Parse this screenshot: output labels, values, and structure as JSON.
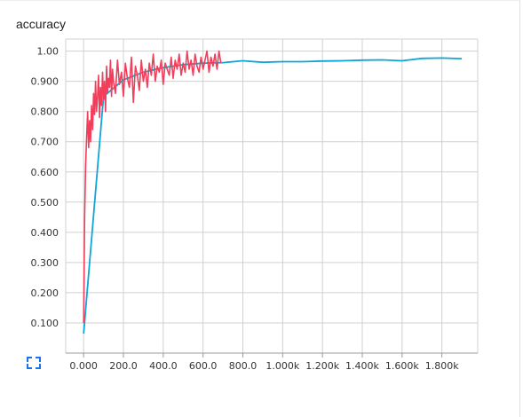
{
  "card": {
    "title": "accuracy"
  },
  "expand_icon": "expand-icon",
  "colors": {
    "train": "#f23e5b",
    "eval": "#0ea5d9",
    "grid": "#d0d0d0",
    "axis": "#9a9a9a",
    "expand": "#1a73e8"
  },
  "chart_data": {
    "type": "line",
    "title": "accuracy",
    "xlabel": "",
    "ylabel": "",
    "xlim": [
      -90,
      1980
    ],
    "ylim": [
      0.0,
      1.04
    ],
    "grid": true,
    "legend": "none",
    "x_ticks": [
      {
        "value": 0,
        "label": "0.000"
      },
      {
        "value": 200,
        "label": "200.0"
      },
      {
        "value": 400,
        "label": "400.0"
      },
      {
        "value": 600,
        "label": "600.0"
      },
      {
        "value": 800,
        "label": "800.0"
      },
      {
        "value": 1000,
        "label": "1.000k"
      },
      {
        "value": 1200,
        "label": "1.200k"
      },
      {
        "value": 1400,
        "label": "1.400k"
      },
      {
        "value": 1600,
        "label": "1.600k"
      },
      {
        "value": 1800,
        "label": "1.800k"
      }
    ],
    "y_ticks": [
      {
        "value": 0.1,
        "label": "0.100"
      },
      {
        "value": 0.2,
        "label": "0.200"
      },
      {
        "value": 0.3,
        "label": "0.300"
      },
      {
        "value": 0.4,
        "label": "0.400"
      },
      {
        "value": 0.5,
        "label": "0.500"
      },
      {
        "value": 0.6,
        "label": "0.600"
      },
      {
        "value": 0.7,
        "label": "0.700"
      },
      {
        "value": 0.8,
        "label": "0.800"
      },
      {
        "value": 0.9,
        "label": "0.900"
      },
      {
        "value": 1.0,
        "label": "1.00"
      }
    ],
    "series": [
      {
        "key": "eval",
        "x": [
          0,
          100,
          200,
          300,
          400,
          500,
          600,
          700,
          800,
          900,
          1000,
          1100,
          1200,
          1300,
          1400,
          1500,
          1600,
          1700,
          1800,
          1900
        ],
        "y": [
          0.065,
          0.85,
          0.905,
          0.93,
          0.945,
          0.955,
          0.96,
          0.962,
          0.968,
          0.963,
          0.965,
          0.965,
          0.967,
          0.968,
          0.97,
          0.971,
          0.968,
          0.976,
          0.977,
          0.975
        ]
      },
      {
        "key": "train",
        "x": [
          0,
          5,
          10,
          15,
          20,
          25,
          30,
          35,
          40,
          45,
          50,
          55,
          60,
          65,
          70,
          75,
          80,
          85,
          90,
          95,
          100,
          105,
          110,
          115,
          120,
          125,
          130,
          135,
          140,
          145,
          150,
          160,
          170,
          180,
          190,
          200,
          210,
          220,
          230,
          240,
          250,
          260,
          270,
          280,
          290,
          300,
          310,
          320,
          330,
          340,
          350,
          360,
          370,
          380,
          390,
          400,
          410,
          420,
          430,
          440,
          450,
          460,
          470,
          480,
          490,
          500,
          510,
          520,
          530,
          540,
          550,
          560,
          570,
          580,
          590,
          600,
          610,
          620,
          630,
          640,
          650,
          660,
          670,
          680,
          690
        ],
        "y": [
          0.1,
          0.45,
          0.62,
          0.71,
          0.8,
          0.68,
          0.77,
          0.7,
          0.82,
          0.74,
          0.86,
          0.79,
          0.9,
          0.8,
          0.85,
          0.92,
          0.78,
          0.88,
          0.82,
          0.93,
          0.84,
          0.9,
          0.8,
          0.95,
          0.86,
          0.91,
          0.88,
          0.97,
          0.85,
          0.94,
          0.9,
          0.86,
          0.97,
          0.89,
          0.93,
          0.85,
          0.96,
          0.91,
          0.88,
          0.98,
          0.83,
          0.95,
          0.92,
          0.87,
          0.97,
          0.9,
          0.94,
          0.88,
          0.96,
          0.92,
          0.99,
          0.9,
          0.95,
          0.93,
          0.97,
          0.89,
          0.96,
          0.94,
          0.92,
          0.98,
          0.91,
          0.97,
          0.94,
          0.99,
          0.92,
          0.96,
          0.93,
          1.0,
          0.94,
          0.97,
          0.92,
          0.99,
          0.95,
          0.93,
          0.98,
          0.94,
          0.97,
          1.0,
          0.93,
          0.98,
          0.95,
          0.99,
          0.94,
          1.0,
          0.96
        ]
      }
    ]
  }
}
